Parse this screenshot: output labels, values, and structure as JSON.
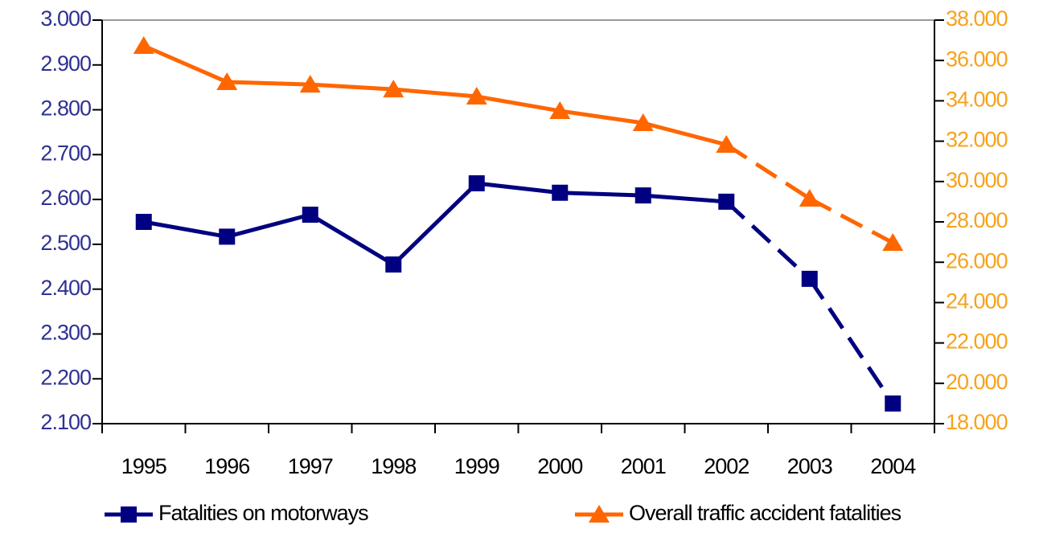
{
  "chart_data": {
    "type": "line",
    "categories": [
      "1995",
      "1996",
      "1997",
      "1998",
      "1999",
      "2000",
      "2001",
      "2002",
      "2003",
      "2004"
    ],
    "series": [
      {
        "name": "Fatalities on motorways",
        "color": "#000080",
        "marker": "square",
        "axis": "y",
        "values": [
          2550,
          2517,
          2566,
          2455,
          2636,
          2615,
          2609,
          2595,
          2423,
          2145
        ],
        "segment_styles": [
          "solid",
          "solid",
          "solid",
          "solid",
          "solid",
          "solid",
          "solid",
          "dashed",
          "dashed"
        ]
      },
      {
        "name": "Overall traffic accident fatalities",
        "color": "#ff6600",
        "marker": "triangle",
        "axis": "y2",
        "values": [
          36725,
          34930,
          34810,
          34570,
          34215,
          33500,
          32900,
          31825,
          29155,
          26965
        ],
        "segment_styles": [
          "solid",
          "solid",
          "solid",
          "solid",
          "solid",
          "solid",
          "solid",
          "dashed",
          "dashed"
        ]
      }
    ],
    "ylim": [
      2100,
      3000
    ],
    "yticks": [
      {
        "value": 2100,
        "label": "2.100"
      },
      {
        "value": 2200,
        "label": "2.200"
      },
      {
        "value": 2300,
        "label": "2.300"
      },
      {
        "value": 2400,
        "label": "2.400"
      },
      {
        "value": 2500,
        "label": "2.500"
      },
      {
        "value": 2600,
        "label": "2.600"
      },
      {
        "value": 2700,
        "label": "2.700"
      },
      {
        "value": 2800,
        "label": "2.800"
      },
      {
        "value": 2900,
        "label": "2.900"
      },
      {
        "value": 3000,
        "label": "3.000"
      }
    ],
    "y2lim": [
      18000,
      38000
    ],
    "y2ticks": [
      {
        "value": 18000,
        "label": "18.000"
      },
      {
        "value": 20000,
        "label": "20.000"
      },
      {
        "value": 22000,
        "label": "22.000"
      },
      {
        "value": 24000,
        "label": "24.000"
      },
      {
        "value": 26000,
        "label": "26.000"
      },
      {
        "value": 28000,
        "label": "28.000"
      },
      {
        "value": 30000,
        "label": "30.000"
      },
      {
        "value": 32000,
        "label": "32.000"
      },
      {
        "value": 34000,
        "label": "34.000"
      },
      {
        "value": 36000,
        "label": "36.000"
      },
      {
        "value": 38000,
        "label": "38.000"
      }
    ],
    "y_tick_color": "#2e3192",
    "y2_tick_color": "#f7a21b",
    "legend": "bottom",
    "grid": false
  }
}
